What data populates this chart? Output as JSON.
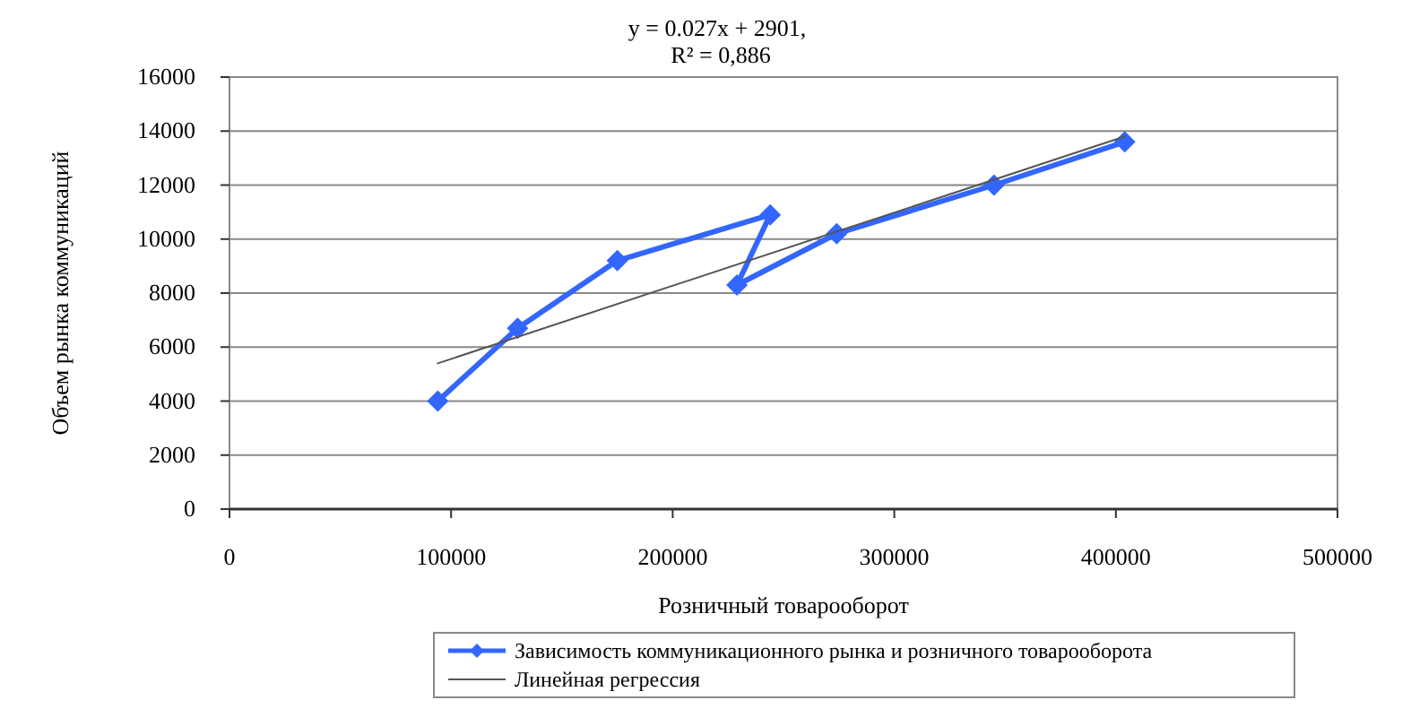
{
  "chart_data": {
    "type": "line",
    "xlabel": "Розничный товарооборот",
    "ylabel": "Объем рынка коммуникаций",
    "annotations": [
      "y = 0.027x + 2901,",
      "R² = 0,886"
    ],
    "xlim": [
      0,
      500000
    ],
    "xticks": [
      0,
      100000,
      200000,
      300000,
      400000,
      500000
    ],
    "ylim": [
      0,
      16000
    ],
    "yticks": [
      0,
      2000,
      4000,
      6000,
      8000,
      10000,
      12000,
      14000,
      16000
    ],
    "grid": "y",
    "legend": "bottom",
    "series": [
      {
        "name": "Зависимость коммуникационного рынка и розничного товарооборота",
        "color": "#3366ff",
        "marker": "diamond",
        "x": [
          94000,
          130000,
          175000,
          244000,
          229000,
          274000,
          345000,
          404000
        ],
        "values": [
          4000,
          6700,
          9200,
          10900,
          8300,
          10200,
          12000,
          13600
        ]
      },
      {
        "name": "Линейная регрессия",
        "type": "line",
        "color": "#555555",
        "marker": "none",
        "x": [
          94000,
          404000
        ],
        "values": [
          5400,
          13800
        ]
      }
    ]
  }
}
